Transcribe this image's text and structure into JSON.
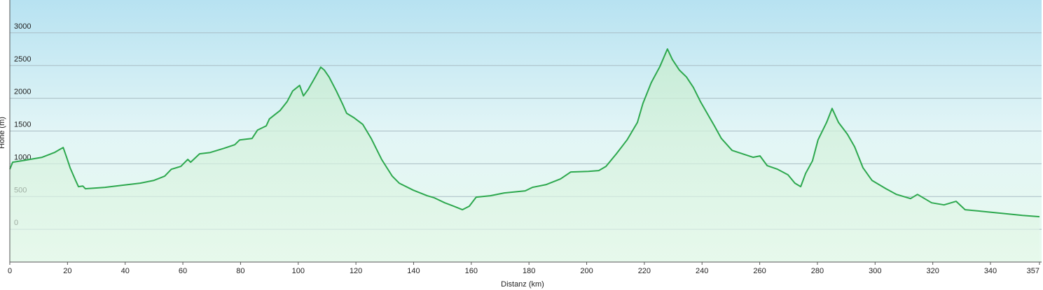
{
  "chart_data": {
    "type": "area",
    "xlabel": "Distanz  (km)",
    "ylabel": "Höhe (m)",
    "color": "#2da84e",
    "x": [
      0,
      1,
      3.9,
      11.2,
      15.5,
      17.2,
      18.5,
      19.7,
      20.9,
      22.8,
      23.8,
      25.3,
      26.2,
      33,
      39,
      45.2,
      50,
      53.7,
      56,
      59.3,
      61.7,
      62.7,
      65.8,
      69.5,
      74.3,
      78,
      79.7,
      84,
      85.9,
      88.9,
      90,
      93.7,
      96.2,
      98.1,
      100.5,
      101.8,
      103.4,
      105.9,
      107.8,
      109,
      110.7,
      113.2,
      115.5,
      116.8,
      119.2,
      122.4,
      125.3,
      128.9,
      132.6,
      135,
      139.9,
      144.7,
      147.2,
      150.8,
      153.9,
      156.9,
      159.3,
      161.7,
      166.6,
      171.4,
      178.7,
      181.2,
      186,
      190.9,
      194.5,
      200.6,
      204.2,
      206.7,
      210.3,
      214,
      217.6,
      219.5,
      222.4,
      225.4,
      228,
      229.7,
      232.1,
      234.6,
      237,
      239.4,
      241.9,
      244.3,
      246.7,
      250.4,
      254,
      257.7,
      260.1,
      262.6,
      266.2,
      269.8,
      272.2,
      274.2,
      275.9,
      278.3,
      280.2,
      283.2,
      285.1,
      287.3,
      290.4,
      292.9,
      295.8,
      298.9,
      303.8,
      307.4,
      312.3,
      314.7,
      319.6,
      323.9,
      328.1,
      331.2,
      336.6,
      343.9,
      351.1,
      357
    ],
    "values": [
      917,
      1024,
      1045,
      1099,
      1173,
      1216,
      1248,
      1099,
      939,
      747,
      651,
      661,
      619,
      640,
      672,
      704,
      747,
      811,
      917,
      960,
      1067,
      1024,
      1152,
      1173,
      1237,
      1291,
      1365,
      1387,
      1515,
      1579,
      1685,
      1813,
      1952,
      2112,
      2197,
      2037,
      2133,
      2325,
      2475,
      2432,
      2325,
      2112,
      1899,
      1771,
      1707,
      1600,
      1387,
      1067,
      811,
      704,
      597,
      512,
      480,
      405,
      352,
      299,
      352,
      491,
      512,
      555,
      587,
      640,
      683,
      768,
      875,
      885,
      896,
      960,
      1152,
      1365,
      1632,
      1920,
      2240,
      2485,
      2752,
      2592,
      2432,
      2325,
      2165,
      1952,
      1760,
      1579,
      1387,
      1205,
      1152,
      1099,
      1120,
      971,
      917,
      832,
      704,
      651,
      853,
      1045,
      1365,
      1632,
      1845,
      1632,
      1451,
      1259,
      939,
      747,
      619,
      533,
      469,
      533,
      405,
      373,
      427,
      299,
      277,
      245,
      213,
      192
    ],
    "xlim": [
      0,
      357
    ],
    "xticks": [
      0,
      20,
      40,
      60,
      80,
      100,
      120,
      140,
      160,
      180,
      200,
      220,
      240,
      260,
      280,
      300,
      320,
      340,
      357
    ],
    "ylim": [
      -500,
      3500
    ],
    "yticks": [
      0,
      500,
      1000,
      1500,
      2000,
      2500,
      3000
    ],
    "grid": true
  }
}
